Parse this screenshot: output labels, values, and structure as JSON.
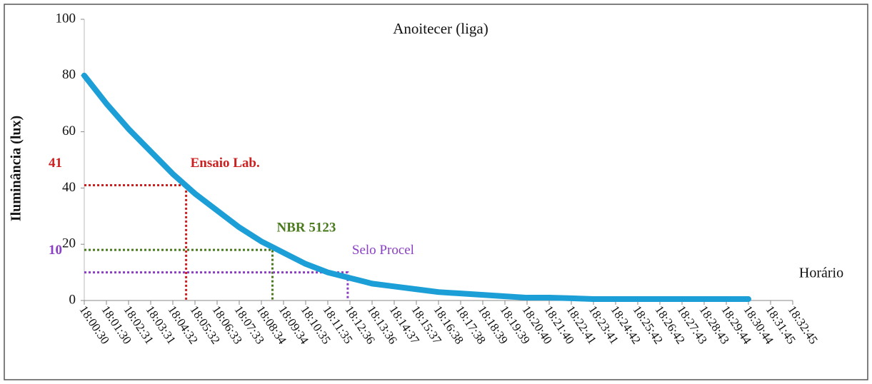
{
  "chart_data": {
    "type": "line",
    "title": "Anoitecer (liga)",
    "y_label": "Iluminância (lux)",
    "x_label": "Horário",
    "categories": [
      "18:00:30",
      "18:01:30",
      "18:02:31",
      "18:03:31",
      "18:04:32",
      "18:05:32",
      "18:06:33",
      "18:07:33",
      "18:08:34",
      "18:09:34",
      "18:10:35",
      "18:11:35",
      "18:12:36",
      "18:13:36",
      "18:14:37",
      "18:15:37",
      "18:16:38",
      "18:17:38",
      "18:18:39",
      "18:19:39",
      "18:20:40",
      "18:21:40",
      "18:22:41",
      "18:23:41",
      "18:24:42",
      "18:25:42",
      "18:26:42",
      "18:27:43",
      "18:28:43",
      "18:29:44",
      "18:30:44",
      "18:31:45",
      "18:32:45"
    ],
    "series": [
      {
        "name": "Iluminância",
        "color": "#1c9fd6",
        "values": [
          80,
          70,
          61,
          53,
          45,
          38,
          32,
          26,
          21,
          17,
          13,
          10,
          8,
          6,
          5,
          4,
          3,
          2.5,
          2,
          1.5,
          1,
          1,
          0.8,
          0.5,
          0.5,
          0.5,
          0.5,
          0.5,
          0.5,
          0.5,
          0.5,
          null,
          null
        ]
      }
    ],
    "ylim": [
      0,
      100
    ],
    "yticks": [
      0,
      20,
      40,
      60,
      80,
      100
    ],
    "guides": [
      {
        "name": "Ensaio Lab.",
        "value": 41,
        "x_index": 4.6,
        "color": "#cc1f1f",
        "value_printed": true
      },
      {
        "name": "NBR 5123",
        "value": 18,
        "x_index": 8.5,
        "color": "#4a7a1e",
        "value_printed": false
      },
      {
        "name": "Selo Procel",
        "value": 10,
        "x_index": 11.9,
        "color": "#8a3fc4",
        "value_printed": true
      }
    ]
  }
}
